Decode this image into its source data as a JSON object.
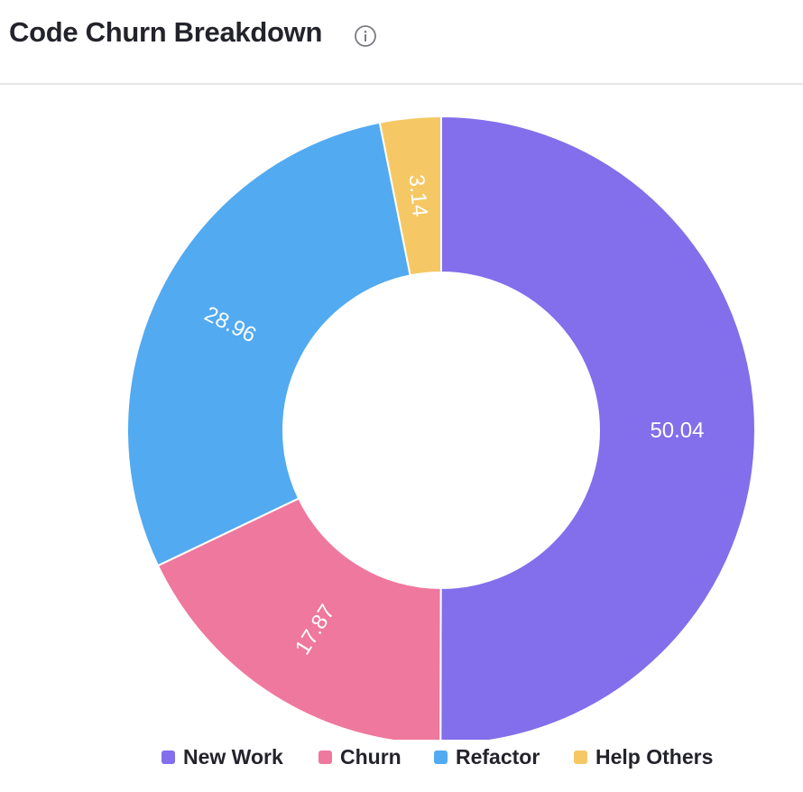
{
  "header": {
    "title": "Code Churn Breakdown",
    "info_icon": "info-circle-icon"
  },
  "colors": {
    "New Work": "#836eeb",
    "Churn": "#ee789e",
    "Refactor": "#52aaf1",
    "Help Others": "#f5c865"
  },
  "chart_data": {
    "type": "pie",
    "variant": "donut",
    "title": "Code Churn Breakdown",
    "categories": [
      "New Work",
      "Churn",
      "Refactor",
      "Help Others"
    ],
    "values": [
      50.04,
      17.87,
      28.96,
      3.14
    ],
    "value_labels": [
      "50.04",
      "17.87",
      "28.96",
      "3.14"
    ],
    "start_angle": "12 o'clock",
    "direction": "clockwise",
    "legend_position": "bottom"
  }
}
